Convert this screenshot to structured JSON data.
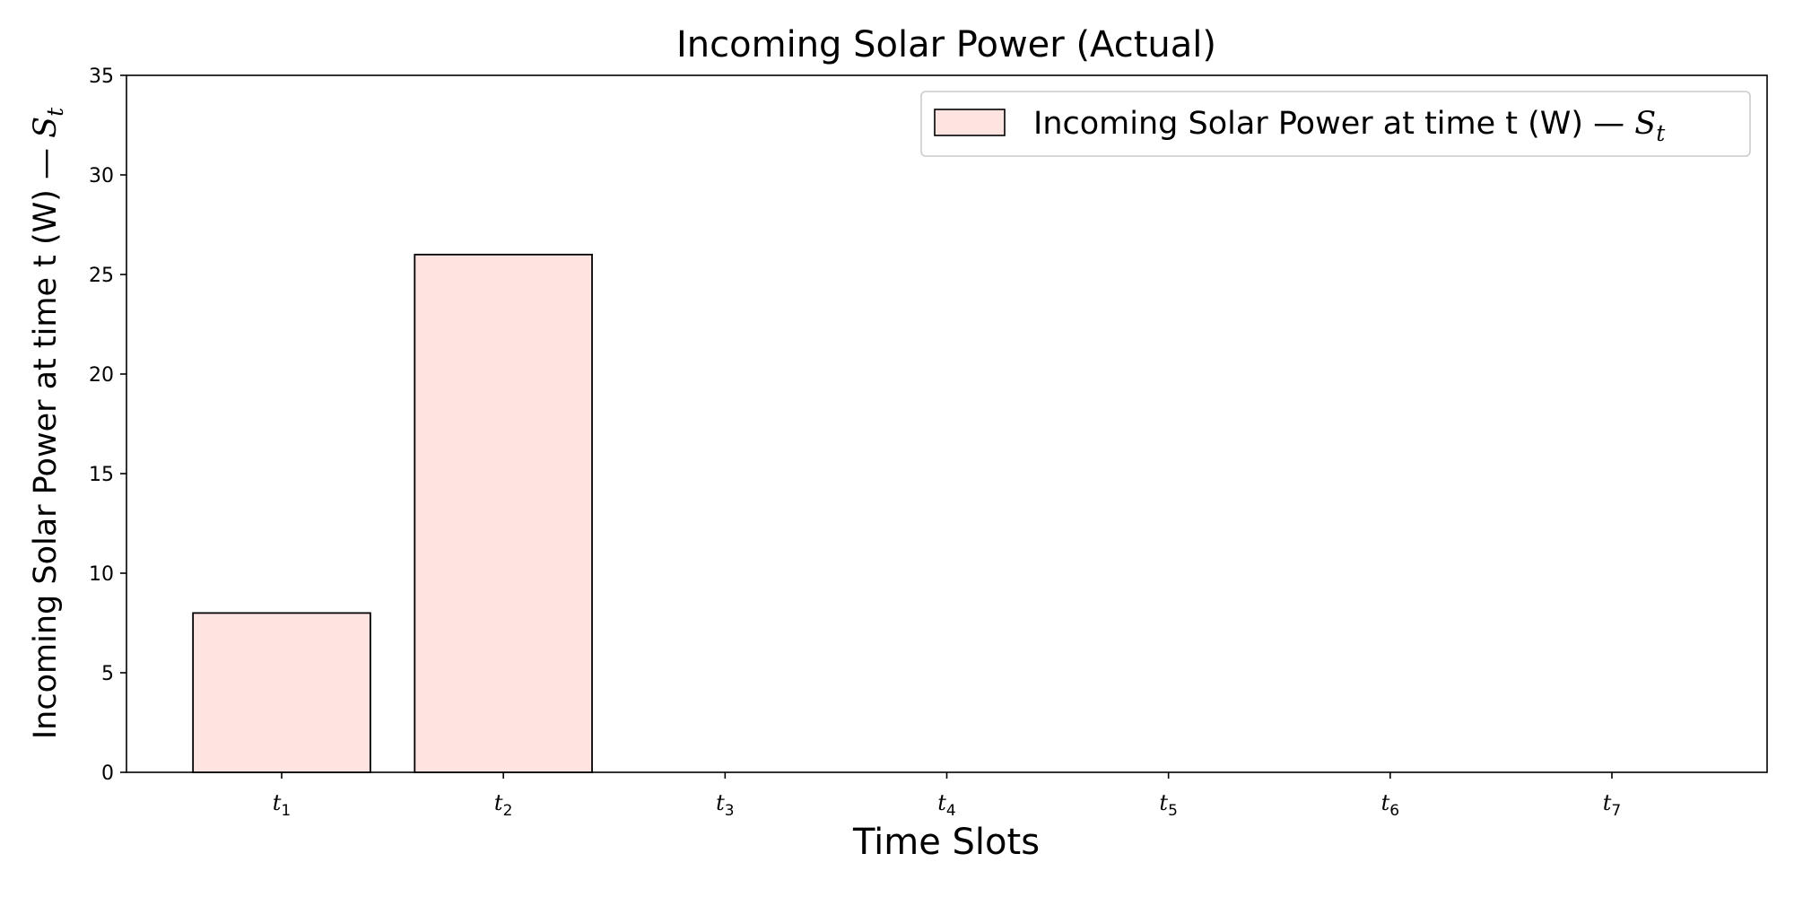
{
  "chart_data": {
    "type": "bar",
    "title": "Incoming Solar Power (Actual)",
    "xlabel": "Time Slots",
    "ylabel": "Incoming Solar Power at time t (W) — ",
    "ylabel_symbol": "S",
    "ylabel_subscript": "t",
    "ylim": [
      0,
      35
    ],
    "yticks": [
      0,
      5,
      10,
      15,
      20,
      25,
      30,
      35
    ],
    "categories": [
      {
        "base": "t",
        "sub": "1"
      },
      {
        "base": "t",
        "sub": "2"
      },
      {
        "base": "t",
        "sub": "3"
      },
      {
        "base": "t",
        "sub": "4"
      },
      {
        "base": "t",
        "sub": "5"
      },
      {
        "base": "t",
        "sub": "6"
      },
      {
        "base": "t",
        "sub": "7"
      }
    ],
    "series": [
      {
        "name": "Incoming Solar Power at time t (W) — ",
        "name_symbol": "S",
        "name_subscript": "t",
        "color": "#fde4e1",
        "edge_color": "#000000",
        "values": [
          8,
          26,
          null,
          null,
          null,
          null,
          null
        ]
      }
    ],
    "legend": "top-right",
    "grid": false
  }
}
